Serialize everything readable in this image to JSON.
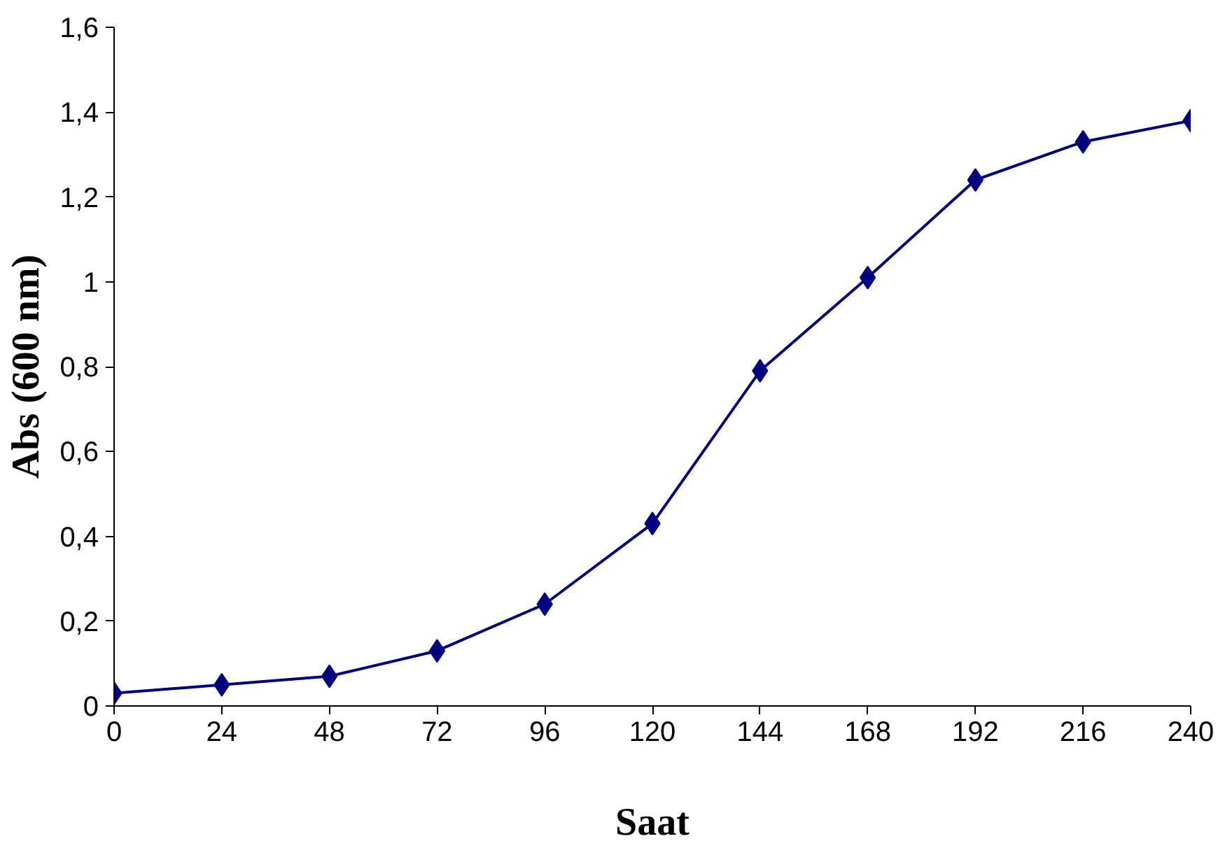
{
  "chart_data": {
    "type": "line",
    "xlabel": "Saat",
    "ylabel": "Abs (600 nm)",
    "x": [
      0,
      24,
      48,
      72,
      96,
      120,
      144,
      168,
      192,
      216,
      240
    ],
    "series": [
      {
        "color": "#000080",
        "values": [
          0.03,
          0.05,
          0.07,
          0.13,
          0.24,
          0.43,
          0.79,
          1.01,
          1.24,
          1.33,
          1.38
        ]
      }
    ],
    "xlim": [
      0,
      240
    ],
    "xticks": [
      0,
      24,
      48,
      72,
      96,
      120,
      144,
      168,
      192,
      216,
      240
    ],
    "ylim": [
      0,
      1.6
    ],
    "yticks": [
      0,
      {
        "value": 0.2,
        "label": "0,2"
      },
      {
        "value": 0.4,
        "label": "0,4"
      },
      {
        "value": 0.6,
        "label": "0,6"
      },
      {
        "value": 0.8,
        "label": "0,8"
      },
      1,
      {
        "value": 1.2,
        "label": "1,2"
      },
      {
        "value": 1.4,
        "label": "1,4"
      },
      {
        "value": 1.6,
        "label": "1,6"
      }
    ],
    "grid": false,
    "marker": "diamond",
    "line_style": "solid"
  }
}
